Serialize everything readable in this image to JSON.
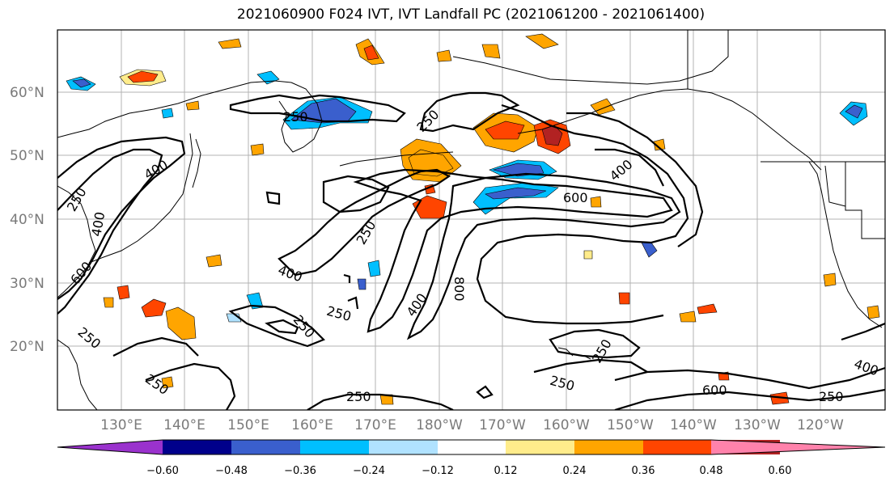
{
  "title": "2021060900 F024 IVT, IVT Landfall PC (2021061200 - 2021061400)",
  "lat_labels": [
    "60°N",
    "50°N",
    "40°N",
    "30°N",
    "20°N"
  ],
  "lon_labels": [
    "130°E",
    "140°E",
    "150°E",
    "160°E",
    "170°E",
    "180°W",
    "170°W",
    "160°W",
    "150°W",
    "140°W",
    "130°W",
    "120°W"
  ],
  "contour_labels": [
    "250",
    "250",
    "250",
    "250",
    "250",
    "250",
    "250",
    "250",
    "250",
    "250",
    "250",
    "250",
    "400",
    "400",
    "400",
    "400",
    "400",
    "400",
    "600",
    "600",
    "600",
    "800"
  ],
  "colorbar": {
    "ticks": [
      "−0.60",
      "−0.48",
      "−0.36",
      "−0.24",
      "−0.12",
      "0.12",
      "0.24",
      "0.36",
      "0.48",
      "0.60"
    ],
    "colors": [
      "#9a32cd",
      "#00008b",
      "#3a5fcd",
      "#00bfff",
      "#b0e2ff",
      "#ffffff",
      "#ffec8b",
      "#ffa500",
      "#ff4500",
      "#b22222",
      "#ff82ab"
    ]
  }
}
